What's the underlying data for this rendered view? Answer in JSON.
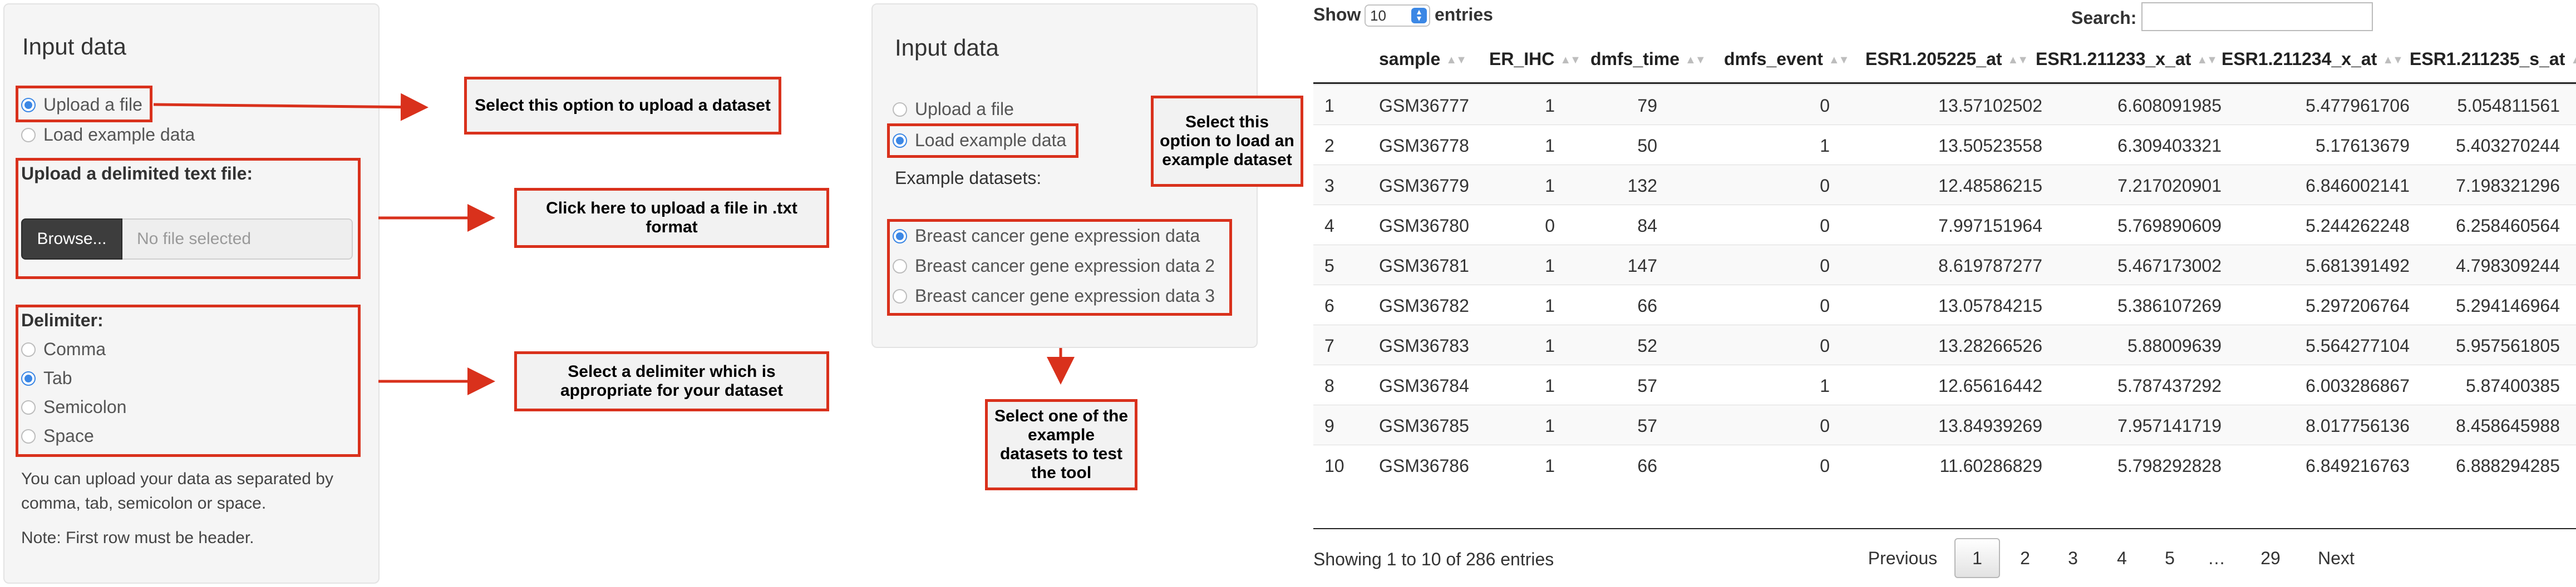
{
  "panel1": {
    "title": "Input data",
    "radio_upload": "Upload a file",
    "radio_example": "Load example data",
    "upload_label": "Upload a delimited text file:",
    "browse": "Browse...",
    "file_placeholder": "No file selected",
    "delimiter_label": "Delimiter:",
    "delimiters": [
      "Comma",
      "Tab",
      "Semicolon",
      "Space"
    ],
    "selected_delimiter": "Tab",
    "help1": "You can upload your data as separated by comma, tab, semicolon or space.",
    "help2": "Note: First row must be header."
  },
  "panel2": {
    "title": "Input data",
    "radio_upload": "Upload a file",
    "radio_example": "Load example data",
    "datasets_label": "Example datasets:",
    "datasets": [
      "Breast cancer gene expression data",
      "Breast cancer gene expression data 2",
      "Breast cancer gene expression data 3"
    ]
  },
  "callouts": {
    "upload": "Select this option to upload a dataset",
    "browse": "Click here to upload a file in .txt format",
    "delimiter": "Select a delimiter which is appropriate for your dataset",
    "example": "Select this option to load an example dataset",
    "datasets": "Select one of the example datasets to test the tool"
  },
  "table": {
    "show": "Show",
    "entries_value": "10",
    "entries": "entries",
    "search": "Search:",
    "columns": [
      "sample",
      "ER_IHC",
      "dmfs_time",
      "dmfs_event",
      "ESR1.205225_at",
      "ESR1.211233_x_at",
      "ESR1.211234_x_at",
      "ESR1.211235_s_at"
    ],
    "rows": [
      [
        "1",
        "GSM36777",
        "1",
        "79",
        "0",
        "13.57102502",
        "6.608091985",
        "5.477961706",
        "5.054811561"
      ],
      [
        "2",
        "GSM36778",
        "1",
        "50",
        "1",
        "13.50523558",
        "6.309403321",
        "5.17613679",
        "5.403270244"
      ],
      [
        "3",
        "GSM36779",
        "1",
        "132",
        "0",
        "12.48586215",
        "7.217020901",
        "6.846002141",
        "7.198321296"
      ],
      [
        "4",
        "GSM36780",
        "0",
        "84",
        "0",
        "7.997151964",
        "5.769890609",
        "5.244262248",
        "6.258460564"
      ],
      [
        "5",
        "GSM36781",
        "1",
        "147",
        "0",
        "8.619787277",
        "5.467173002",
        "5.681391492",
        "4.798309244"
      ],
      [
        "6",
        "GSM36782",
        "1",
        "66",
        "0",
        "13.05784215",
        "5.386107269",
        "5.297206764",
        "5.294146964"
      ],
      [
        "7",
        "GSM36783",
        "1",
        "52",
        "0",
        "13.28266526",
        "5.88009639",
        "5.564277104",
        "5.957561805"
      ],
      [
        "8",
        "GSM36784",
        "1",
        "57",
        "1",
        "12.65616442",
        "5.787437292",
        "6.003286867",
        "5.87400385"
      ],
      [
        "9",
        "GSM36785",
        "1",
        "57",
        "0",
        "13.84939269",
        "7.957141719",
        "8.017756136",
        "8.458645988"
      ],
      [
        "10",
        "GSM36786",
        "1",
        "66",
        "0",
        "11.60286829",
        "5.798292828",
        "6.849216763",
        "6.888294285"
      ]
    ],
    "info": "Showing 1 to 10 of 286 entries",
    "pagination": [
      "Previous",
      "1",
      "2",
      "3",
      "4",
      "5",
      "…",
      "29",
      "Next"
    ]
  }
}
